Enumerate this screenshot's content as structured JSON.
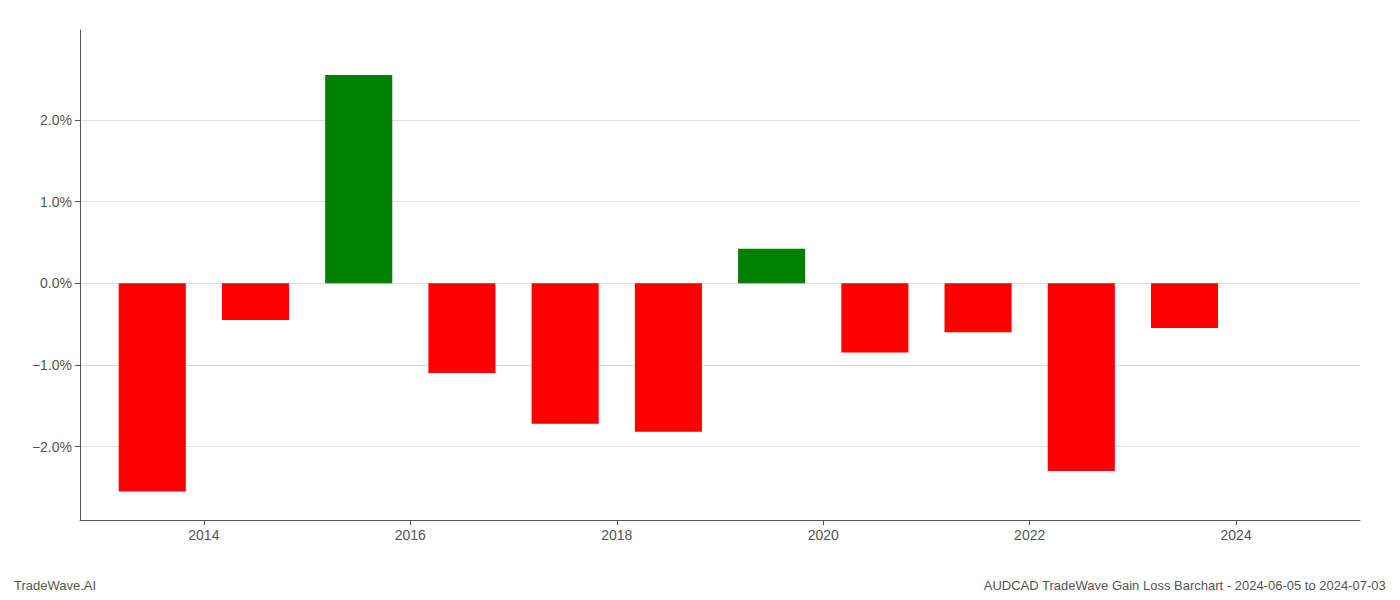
{
  "chart_data": {
    "type": "bar",
    "x": [
      2013.5,
      2014.5,
      2015.5,
      2016.5,
      2017.5,
      2018.5,
      2019.5,
      2020.5,
      2021.5,
      2022.5,
      2023.5
    ],
    "values": [
      -2.55,
      -0.45,
      2.55,
      -1.1,
      -1.72,
      -1.82,
      0.42,
      -0.85,
      -0.6,
      -2.3,
      -0.55
    ],
    "colors": [
      "#ff0000",
      "#ff0000",
      "#008000",
      "#ff0000",
      "#ff0000",
      "#ff0000",
      "#008000",
      "#ff0000",
      "#ff0000",
      "#ff0000",
      "#ff0000"
    ],
    "xlim": [
      2012.8,
      2025.2
    ],
    "xticks": [
      2014,
      2016,
      2018,
      2020,
      2022,
      2024
    ],
    "ylim": [
      -2.9,
      3.1
    ],
    "yticks": [
      {
        "value": -2.0,
        "label": "−2.0%"
      },
      {
        "value": -1.0,
        "label": "−1.0%"
      },
      {
        "value": 0.0,
        "label": "0.0%"
      },
      {
        "value": 1.0,
        "label": "1.0%"
      },
      {
        "value": 2.0,
        "label": "2.0%"
      }
    ],
    "grid": true,
    "annotations": [
      "TradeWave.AI",
      "AUDCAD TradeWave Gain Loss Barchart - 2024-06-05 to 2024-07-03"
    ]
  }
}
